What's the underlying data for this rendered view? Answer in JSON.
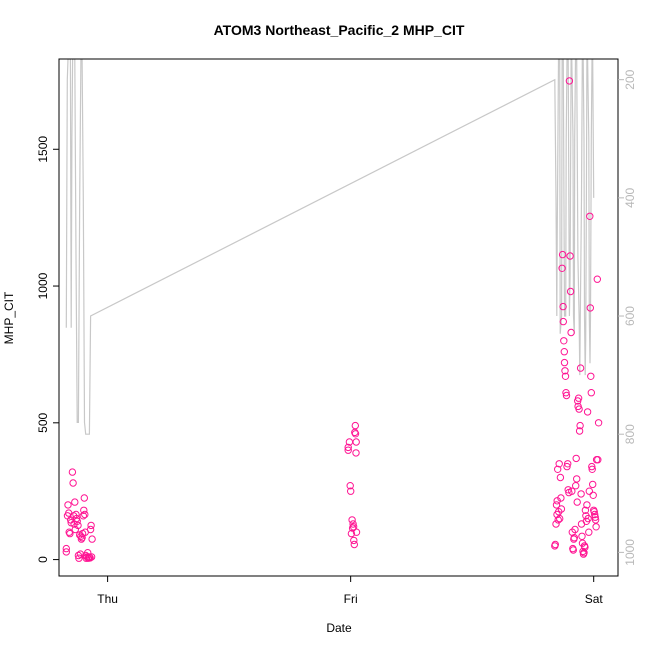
{
  "chart_data": {
    "type": "scatter",
    "title": "ATOM3 Northeast_Pacific_2 MHP_CIT",
    "xlabel": "Date",
    "ylabel": "MHP_CIT",
    "x_ticks": [
      "Thu",
      "Fri",
      "Sat"
    ],
    "x_tick_positions": [
      0,
      1,
      2
    ],
    "y_ticks": [
      0,
      500,
      1000,
      1500
    ],
    "ylim": [
      -60,
      1830
    ],
    "xlim": [
      -0.2,
      2.1
    ],
    "y2_ticks": [
      200,
      400,
      600,
      800,
      1000
    ],
    "y2lim": [
      1040,
      165
    ],
    "grid": false,
    "colors": {
      "points": "#ff1493",
      "profile": "#c8c8c8",
      "axes": "#000000",
      "right_axis": "#b8b8b8"
    },
    "series": [
      {
        "kind": "scatter",
        "points": [
          [
            -0.17,
            40
          ],
          [
            -0.17,
            28
          ],
          [
            -0.165,
            160
          ],
          [
            -0.163,
            200
          ],
          [
            -0.16,
            170
          ],
          [
            -0.158,
            100
          ],
          [
            -0.155,
            95
          ],
          [
            -0.152,
            145
          ],
          [
            -0.15,
            135
          ],
          [
            -0.145,
            320
          ],
          [
            -0.142,
            280
          ],
          [
            -0.14,
            160
          ],
          [
            -0.138,
            130
          ],
          [
            -0.135,
            210
          ],
          [
            -0.133,
            110
          ],
          [
            -0.13,
            165
          ],
          [
            -0.128,
            150
          ],
          [
            -0.125,
            140
          ],
          [
            -0.122,
            125
          ],
          [
            -0.12,
            15
          ],
          [
            -0.118,
            5
          ],
          [
            -0.115,
            90
          ],
          [
            -0.112,
            20
          ],
          [
            -0.11,
            85
          ],
          [
            -0.108,
            75
          ],
          [
            -0.105,
            80
          ],
          [
            -0.103,
            95
          ],
          [
            -0.1,
            160
          ],
          [
            -0.098,
            180
          ],
          [
            -0.096,
            225
          ],
          [
            -0.094,
            165
          ],
          [
            -0.092,
            100
          ],
          [
            -0.09,
            15
          ],
          [
            -0.088,
            5
          ],
          [
            -0.085,
            10
          ],
          [
            -0.082,
            25
          ],
          [
            -0.08,
            5
          ],
          [
            -0.077,
            10
          ],
          [
            -0.074,
            8
          ],
          [
            -0.072,
            6
          ],
          [
            -0.07,
            110
          ],
          [
            -0.068,
            125
          ],
          [
            -0.066,
            10
          ],
          [
            -0.064,
            75
          ],
          [
            0.99,
            400
          ],
          [
            0.99,
            410
          ],
          [
            0.995,
            430
          ],
          [
            0.998,
            270
          ],
          [
            1.0,
            250
          ],
          [
            1.003,
            95
          ],
          [
            1.006,
            145
          ],
          [
            1.008,
            115
          ],
          [
            1.01,
            130
          ],
          [
            1.012,
            120
          ],
          [
            1.013,
            70
          ],
          [
            1.015,
            55
          ],
          [
            1.017,
            465
          ],
          [
            1.019,
            490
          ],
          [
            1.02,
            460
          ],
          [
            1.022,
            390
          ],
          [
            1.023,
            430
          ],
          [
            1.024,
            100
          ],
          [
            1.84,
            50
          ],
          [
            1.842,
            55
          ],
          [
            1.845,
            130
          ],
          [
            1.847,
            200
          ],
          [
            1.849,
            165
          ],
          [
            1.85,
            215
          ],
          [
            1.852,
            330
          ],
          [
            1.854,
            145
          ],
          [
            1.856,
            175
          ],
          [
            1.858,
            350
          ],
          [
            1.86,
            150
          ],
          [
            1.863,
            300
          ],
          [
            1.865,
            225
          ],
          [
            1.867,
            185
          ],
          [
            1.87,
            1065
          ],
          [
            1.872,
            1115
          ],
          [
            1.874,
            925
          ],
          [
            1.875,
            870
          ],
          [
            1.877,
            800
          ],
          [
            1.879,
            760
          ],
          [
            1.88,
            720
          ],
          [
            1.882,
            690
          ],
          [
            1.884,
            670
          ],
          [
            1.886,
            610
          ],
          [
            1.888,
            600
          ],
          [
            1.89,
            340
          ],
          [
            1.893,
            350
          ],
          [
            1.895,
            255
          ],
          [
            1.898,
            245
          ],
          [
            1.9,
            1750
          ],
          [
            1.903,
            1110
          ],
          [
            1.905,
            980
          ],
          [
            1.907,
            830
          ],
          [
            1.91,
            250
          ],
          [
            1.912,
            100
          ],
          [
            1.914,
            40
          ],
          [
            1.916,
            35
          ],
          [
            1.918,
            75
          ],
          [
            1.92,
            80
          ],
          [
            1.923,
            110
          ],
          [
            1.926,
            270
          ],
          [
            1.928,
            370
          ],
          [
            1.93,
            295
          ],
          [
            1.932,
            210
          ],
          [
            1.934,
            580
          ],
          [
            1.936,
            560
          ],
          [
            1.938,
            590
          ],
          [
            1.94,
            550
          ],
          [
            1.942,
            470
          ],
          [
            1.944,
            490
          ],
          [
            1.946,
            700
          ],
          [
            1.948,
            240
          ],
          [
            1.95,
            130
          ],
          [
            1.952,
            85
          ],
          [
            1.954,
            60
          ],
          [
            1.956,
            30
          ],
          [
            1.958,
            20
          ],
          [
            1.96,
            25
          ],
          [
            1.962,
            50
          ],
          [
            1.964,
            45
          ],
          [
            1.966,
            180
          ],
          [
            1.968,
            160
          ],
          [
            1.97,
            140
          ],
          [
            1.972,
            200
          ],
          [
            1.975,
            540
          ],
          [
            1.977,
            150
          ],
          [
            1.98,
            100
          ],
          [
            1.982,
            250
          ],
          [
            1.984,
            1255
          ],
          [
            1.986,
            920
          ],
          [
            1.988,
            670
          ],
          [
            1.99,
            610
          ],
          [
            1.992,
            340
          ],
          [
            1.994,
            330
          ],
          [
            1.996,
            275
          ],
          [
            1.998,
            235
          ],
          [
            2.0,
            180
          ],
          [
            2.002,
            175
          ],
          [
            2.004,
            165
          ],
          [
            2.006,
            155
          ],
          [
            2.008,
            145
          ],
          [
            2.01,
            120
          ],
          [
            2.012,
            365
          ],
          [
            2.015,
            1025
          ],
          [
            2.017,
            365
          ],
          [
            2.02,
            500
          ]
        ]
      },
      {
        "kind": "line",
        "axis": "right",
        "points": [
          [
            -0.17,
            620
          ],
          [
            -0.168,
            400
          ],
          [
            -0.166,
            200
          ],
          [
            -0.163,
            165
          ],
          [
            -0.158,
            165
          ],
          [
            -0.153,
            165
          ],
          [
            -0.15,
            620
          ],
          [
            -0.147,
            300
          ],
          [
            -0.144,
            165
          ],
          [
            -0.14,
            165
          ],
          [
            -0.135,
            165
          ],
          [
            -0.13,
            500
          ],
          [
            -0.125,
            780
          ],
          [
            -0.12,
            780
          ],
          [
            -0.115,
            400
          ],
          [
            -0.11,
            165
          ],
          [
            -0.105,
            165
          ],
          [
            -0.1,
            400
          ],
          [
            -0.095,
            780
          ],
          [
            -0.09,
            800
          ],
          [
            -0.085,
            800
          ],
          [
            -0.08,
            800
          ],
          [
            -0.075,
            800
          ],
          [
            -0.07,
            600
          ],
          [
            1.84,
            200
          ],
          [
            1.845,
            400
          ],
          [
            1.848,
            600
          ],
          [
            1.85,
            470
          ],
          [
            1.855,
            165
          ],
          [
            1.86,
            165
          ],
          [
            1.862,
            630
          ],
          [
            1.868,
            600
          ],
          [
            1.87,
            165
          ],
          [
            1.875,
            165
          ],
          [
            1.88,
            600
          ],
          [
            1.885,
            600
          ],
          [
            1.887,
            300
          ],
          [
            1.89,
            165
          ],
          [
            1.895,
            165
          ],
          [
            1.9,
            600
          ],
          [
            1.903,
            530
          ],
          [
            1.907,
            165
          ],
          [
            1.91,
            165
          ],
          [
            1.915,
            300
          ],
          [
            1.917,
            600
          ],
          [
            1.92,
            630
          ],
          [
            1.922,
            300
          ],
          [
            1.925,
            165
          ],
          [
            1.93,
            165
          ],
          [
            1.935,
            500
          ],
          [
            1.94,
            600
          ],
          [
            1.943,
            700
          ],
          [
            1.945,
            600
          ],
          [
            1.95,
            400
          ],
          [
            1.953,
            165
          ],
          [
            1.957,
            165
          ],
          [
            1.96,
            300
          ],
          [
            1.962,
            600
          ],
          [
            1.965,
            700
          ],
          [
            1.967,
            640
          ],
          [
            1.97,
            400
          ],
          [
            1.972,
            165
          ],
          [
            1.975,
            165
          ],
          [
            1.98,
            300
          ],
          [
            1.982,
            600
          ],
          [
            1.985,
            680
          ],
          [
            1.987,
            600
          ],
          [
            1.99,
            300
          ],
          [
            1.993,
            165
          ],
          [
            1.996,
            165
          ],
          [
            2.0,
            400
          ]
        ]
      }
    ]
  }
}
